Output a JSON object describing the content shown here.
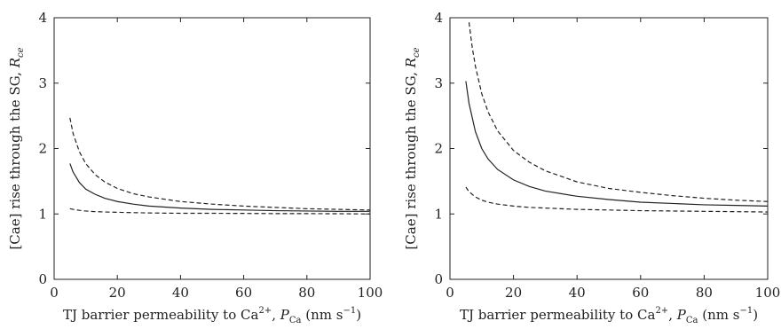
{
  "chart_data": [
    {
      "type": "line",
      "xlabel": "TJ barrier permeability to Ca$^{2+}$, $P_{\\rm Ca}$ (nm s$^{-1}$)",
      "ylabel": "[Cae] rise through the SG, $R_{ce}$",
      "xlabel_parts": {
        "pre": "TJ barrier permeability to Ca",
        "sup": "2+",
        "mid": ", ",
        "var": "P",
        "sub": "Ca",
        "post": " (nm s",
        "unit_sup": "−1",
        "end": ")"
      },
      "ylabel_parts": {
        "pre": "[Cae] rise through the SG, ",
        "var": "R",
        "sub": "ce"
      },
      "xlim": [
        0,
        100
      ],
      "ylim": [
        0,
        4
      ],
      "xticks": [
        0,
        20,
        40,
        60,
        80,
        100
      ],
      "yticks": [
        0,
        1,
        2,
        3,
        4
      ],
      "grid": false,
      "series": [
        {
          "style": "dashed",
          "x": [
            5,
            6,
            8,
            10,
            13,
            16,
            20,
            25,
            30,
            40,
            50,
            60,
            70,
            80,
            90,
            100
          ],
          "y": [
            2.47,
            2.23,
            1.95,
            1.77,
            1.6,
            1.49,
            1.39,
            1.31,
            1.26,
            1.19,
            1.15,
            1.12,
            1.1,
            1.08,
            1.07,
            1.06
          ]
        },
        {
          "style": "solid",
          "x": [
            5,
            6,
            8,
            10,
            13,
            16,
            20,
            25,
            30,
            40,
            50,
            60,
            70,
            80,
            90,
            100
          ],
          "y": [
            1.77,
            1.64,
            1.48,
            1.38,
            1.3,
            1.24,
            1.19,
            1.15,
            1.12,
            1.09,
            1.07,
            1.06,
            1.05,
            1.045,
            1.04,
            1.04
          ]
        },
        {
          "style": "dashed",
          "x": [
            5,
            6,
            8,
            10,
            13,
            16,
            20,
            25,
            30,
            40,
            50,
            60,
            70,
            80,
            90,
            100
          ],
          "y": [
            1.08,
            1.07,
            1.055,
            1.045,
            1.035,
            1.03,
            1.025,
            1.02,
            1.015,
            1.01,
            1.01,
            1.008,
            1.005,
            1.005,
            1.003,
            1.0
          ]
        }
      ]
    },
    {
      "type": "line",
      "xlabel": "TJ barrier permeability to Ca$^{2+}$, $P_{\\rm Ca}$ (nm s$^{-1}$)",
      "ylabel": "[Cae] rise through the SG, $R_{ce}$",
      "xlabel_parts": {
        "pre": "TJ barrier permeability to Ca",
        "sup": "2+",
        "mid": ", ",
        "var": "P",
        "sub": "Ca",
        "post": " (nm s",
        "unit_sup": "−1",
        "end": ")"
      },
      "ylabel_parts": {
        "pre": "[Cae] rise through the SG, ",
        "var": "R",
        "sub": "ce"
      },
      "xlim": [
        0,
        100
      ],
      "ylim": [
        0,
        4
      ],
      "xticks": [
        0,
        20,
        40,
        60,
        80,
        100
      ],
      "yticks": [
        0,
        1,
        2,
        3,
        4
      ],
      "grid": false,
      "series": [
        {
          "style": "dashed",
          "x": [
            6,
            7,
            8,
            10,
            12,
            15,
            20,
            25,
            30,
            40,
            50,
            60,
            70,
            80,
            90,
            100
          ],
          "y": [
            3.93,
            3.55,
            3.26,
            2.84,
            2.56,
            2.27,
            1.97,
            1.79,
            1.66,
            1.49,
            1.39,
            1.33,
            1.28,
            1.24,
            1.21,
            1.19
          ]
        },
        {
          "style": "solid",
          "x": [
            5,
            6,
            8,
            10,
            12,
            15,
            20,
            25,
            30,
            40,
            50,
            60,
            70,
            80,
            90,
            100
          ],
          "y": [
            3.03,
            2.69,
            2.26,
            2.0,
            1.84,
            1.68,
            1.52,
            1.42,
            1.35,
            1.27,
            1.22,
            1.18,
            1.16,
            1.14,
            1.13,
            1.12
          ]
        },
        {
          "style": "dashed",
          "x": [
            5,
            6,
            8,
            10,
            12,
            15,
            20,
            25,
            30,
            40,
            50,
            60,
            70,
            80,
            90,
            100
          ],
          "y": [
            1.41,
            1.34,
            1.26,
            1.21,
            1.18,
            1.15,
            1.12,
            1.1,
            1.09,
            1.07,
            1.06,
            1.05,
            1.045,
            1.04,
            1.035,
            1.03
          ]
        }
      ]
    }
  ]
}
